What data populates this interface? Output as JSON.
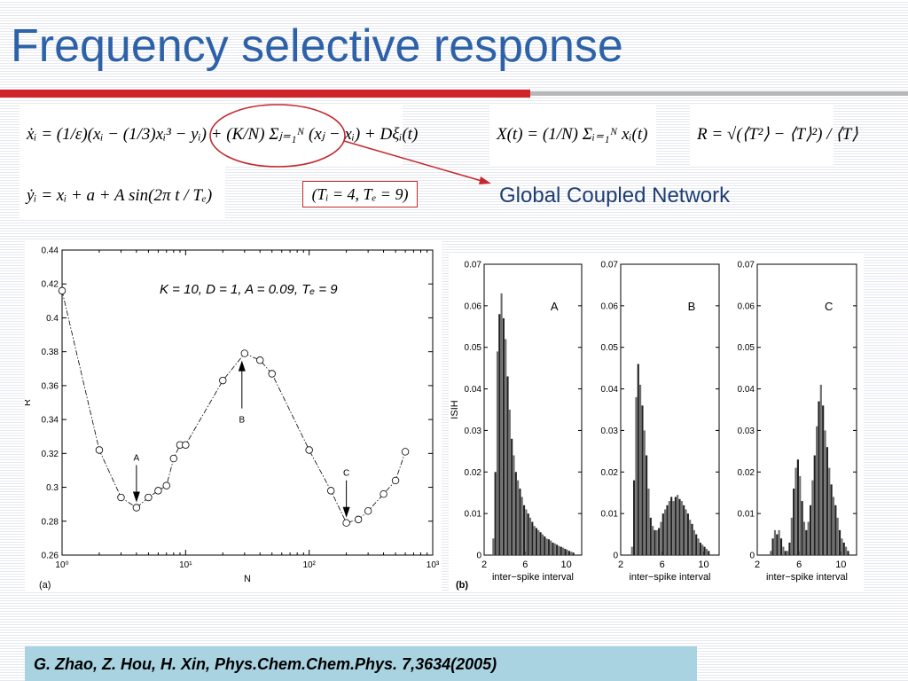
{
  "slide": {
    "title": "Frequency selective response",
    "eq_xdot": "ẋᵢ = (1/ε)(xᵢ − (1/3)xᵢ³ − yᵢ) + (K/N) Σⱼ₌₁ᴺ (xⱼ − xᵢ) + Dξᵢ(t)",
    "eq_ydot": "ẏᵢ = xᵢ + a + A sin(2π t / Tₑ)",
    "eq_X": "X(t) = (1/N) Σᵢ₌₁ᴺ xᵢ(t)",
    "eq_R": "R = √(⟨T²⟩ − ⟨T⟩²) / ⟨T⟩",
    "param_box": "(Tᵢ = 4, Tₑ = 9)",
    "annotation_label": "Global Coupled Network",
    "citation": "G. Zhao, Z. Hou, H. Xin, Phys.Chem.Chem.Phys. 7,3634(2005)"
  },
  "colors": {
    "title": "#2e62a8",
    "rule": "#d1232a",
    "annotation": "#c2282d",
    "label": "#1d3d73",
    "citation_bar": "#a9d3e1"
  },
  "chart_data": [
    {
      "type": "line",
      "panel_label": "(a)",
      "annotation": "K = 10, D = 1, A = 0.09, Tₑ = 9",
      "xlabel": "N",
      "ylabel": "R",
      "xscale": "log",
      "xticks": [
        "10⁰",
        "10¹",
        "10²",
        "10³"
      ],
      "xlim": [
        1,
        1000
      ],
      "ylim": [
        0.26,
        0.44
      ],
      "yticks": [
        "0.26",
        "0.28",
        "0.3",
        "0.32",
        "0.34",
        "0.36",
        "0.38",
        "0.4",
        "0.42",
        "0.44"
      ],
      "markers": "open circles, dash-dot line",
      "x": [
        1,
        2,
        3,
        4,
        5,
        6,
        7,
        8,
        9,
        10,
        20,
        30,
        40,
        50,
        100,
        150,
        200,
        250,
        300,
        400,
        500,
        600
      ],
      "y": [
        0.416,
        0.322,
        0.294,
        0.288,
        0.294,
        0.298,
        0.301,
        0.317,
        0.325,
        0.325,
        0.363,
        0.379,
        0.375,
        0.367,
        0.322,
        0.298,
        0.279,
        0.281,
        0.286,
        0.296,
        0.304,
        0.321
      ],
      "arrows": [
        {
          "label": "A",
          "x": 4,
          "y": 0.288
        },
        {
          "label": "B",
          "x": 30,
          "y": 0.379
        },
        {
          "label": "C",
          "x": 200,
          "y": 0.279
        }
      ]
    },
    {
      "type": "bar",
      "panel_label": "(b)",
      "ylabel": "ISIH",
      "xlabel": "inter−spike interval",
      "ylim": [
        0,
        0.07
      ],
      "xlim": [
        2,
        11.5
      ],
      "xticks": [
        "2",
        "6",
        "10"
      ],
      "yticks": [
        "0",
        "0.01",
        "0.02",
        "0.03",
        "0.04",
        "0.05",
        "0.06",
        "0.07"
      ],
      "subplots": [
        {
          "name": "A",
          "x": [
            2.9,
            3.1,
            3.3,
            3.5,
            3.7,
            3.9,
            4.1,
            4.3,
            4.5,
            4.7,
            4.9,
            5.1,
            5.3,
            5.5,
            5.7,
            5.9,
            6.1,
            6.3,
            6.5,
            6.7,
            6.9,
            7.1,
            7.3,
            7.5,
            7.7,
            7.9,
            8.1,
            8.3,
            8.5,
            8.7,
            8.9,
            9.1,
            9.3,
            9.5,
            9.7,
            9.9,
            10.1,
            10.3,
            10.5,
            10.7
          ],
          "values": [
            0.004,
            0.02,
            0.049,
            0.058,
            0.063,
            0.057,
            0.052,
            0.043,
            0.035,
            0.028,
            0.024,
            0.02,
            0.018,
            0.016,
            0.014,
            0.012,
            0.011,
            0.01,
            0.009,
            0.008,
            0.007,
            0.0065,
            0.006,
            0.0055,
            0.005,
            0.0045,
            0.004,
            0.0038,
            0.0035,
            0.003,
            0.0028,
            0.0025,
            0.0022,
            0.002,
            0.0018,
            0.0015,
            0.0013,
            0.001,
            0.0008,
            0.0006
          ]
        },
        {
          "name": "B",
          "x": [
            3.1,
            3.3,
            3.5,
            3.7,
            3.9,
            4.1,
            4.3,
            4.5,
            4.7,
            4.9,
            5.1,
            5.3,
            5.5,
            5.7,
            5.9,
            6.1,
            6.3,
            6.5,
            6.7,
            6.9,
            7.1,
            7.3,
            7.5,
            7.7,
            7.9,
            8.1,
            8.3,
            8.5,
            8.7,
            8.9,
            9.1,
            9.3,
            9.5,
            9.7,
            9.9,
            10.1,
            10.3,
            10.5
          ],
          "values": [
            0.002,
            0.018,
            0.038,
            0.046,
            0.041,
            0.036,
            0.03,
            0.024,
            0.016,
            0.009,
            0.007,
            0.006,
            0.006,
            0.0065,
            0.008,
            0.01,
            0.011,
            0.012,
            0.013,
            0.014,
            0.013,
            0.014,
            0.0145,
            0.0135,
            0.013,
            0.012,
            0.011,
            0.01,
            0.0085,
            0.0075,
            0.006,
            0.005,
            0.004,
            0.003,
            0.0025,
            0.002,
            0.0015,
            0.001
          ]
        },
        {
          "name": "C",
          "x": [
            3.3,
            3.5,
            3.7,
            3.9,
            4.1,
            4.3,
            4.5,
            4.7,
            4.9,
            5.1,
            5.3,
            5.5,
            5.7,
            5.9,
            6.1,
            6.3,
            6.5,
            6.7,
            6.9,
            7.1,
            7.3,
            7.5,
            7.7,
            7.9,
            8.1,
            8.3,
            8.5,
            8.7,
            8.9,
            9.1,
            9.3,
            9.5,
            9.7,
            9.9,
            10.1,
            10.3,
            10.5,
            10.7
          ],
          "values": [
            0.001,
            0.004,
            0.006,
            0.005,
            0.006,
            0.004,
            0.002,
            0.001,
            0.001,
            0.003,
            0.009,
            0.016,
            0.021,
            0.023,
            0.019,
            0.013,
            0.008,
            0.006,
            0.008,
            0.012,
            0.018,
            0.024,
            0.031,
            0.037,
            0.041,
            0.036,
            0.03,
            0.026,
            0.021,
            0.017,
            0.014,
            0.012,
            0.009,
            0.006,
            0.004,
            0.003,
            0.002,
            0.001
          ]
        }
      ]
    }
  ]
}
